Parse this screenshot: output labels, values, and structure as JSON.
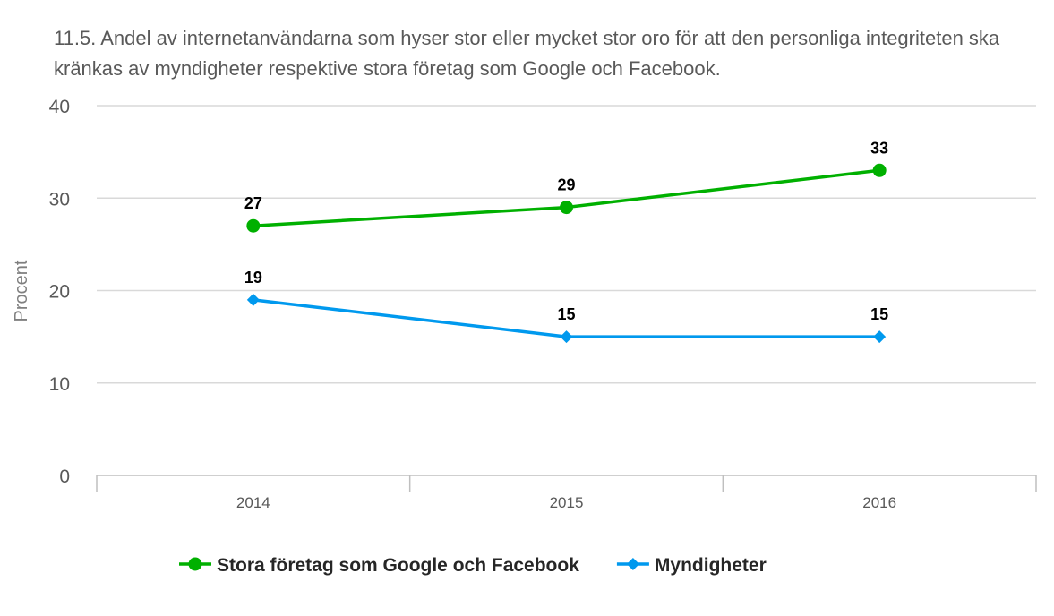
{
  "chart_data": {
    "type": "line",
    "title": "11.5. Andel av internetanvändarna som hyser stor eller mycket stor oro för att den personliga integriteten ska kränkas av myndigheter respektive stora företag som Google och Facebook.",
    "xlabel": "",
    "ylabel": "Procent",
    "categories": [
      "2014",
      "2015",
      "2016"
    ],
    "ylim": [
      0,
      40
    ],
    "yticks": [
      0,
      10,
      20,
      30,
      40
    ],
    "grid": true,
    "legend_position": "bottom",
    "series": [
      {
        "name": "Stora företag som Google och Facebook",
        "values": [
          27,
          29,
          33
        ],
        "labels": [
          "27",
          "29",
          "33"
        ],
        "color": "#00b000",
        "marker": "circle"
      },
      {
        "name": "Myndigheter",
        "values": [
          19,
          15,
          15
        ],
        "labels": [
          "19",
          "15",
          "15"
        ],
        "color": "#0099ee",
        "marker": "diamond"
      }
    ]
  }
}
